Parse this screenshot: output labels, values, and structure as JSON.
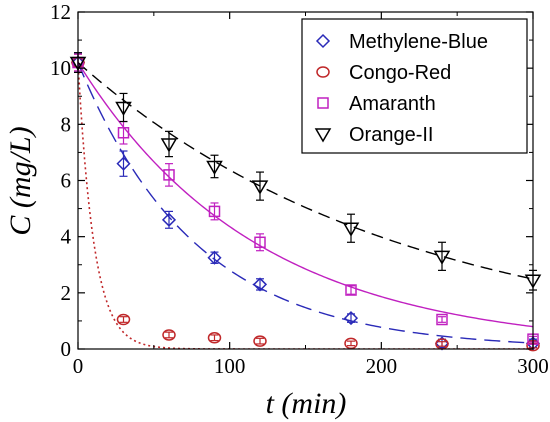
{
  "chart_data": {
    "type": "scatter",
    "xlabel": "t (min)",
    "ylabel": "C (mg/L)",
    "xlim": [
      0,
      300
    ],
    "ylim": [
      0,
      12
    ],
    "xticks": [
      0,
      100,
      200,
      300
    ],
    "yticks": [
      0,
      2,
      4,
      6,
      8,
      10,
      12
    ],
    "grid": false,
    "legend_position": "top-right",
    "series": [
      {
        "name": "Methylene-Blue",
        "marker": "diamond",
        "color": "#2a2ab8",
        "line_style": "long-dash",
        "x": [
          0,
          30,
          60,
          90,
          120,
          180,
          240,
          300
        ],
        "y": [
          10.2,
          6.6,
          4.6,
          3.25,
          2.3,
          1.1,
          0.2,
          0.2
        ],
        "err": [
          0.35,
          0.45,
          0.3,
          0.2,
          0.2,
          0.15,
          0.15,
          0.15
        ],
        "fit": {
          "c0": 10.2,
          "k": 0.0129
        }
      },
      {
        "name": "Congo-Red",
        "marker": "circle",
        "color": "#c0282a",
        "line_style": "dotted",
        "x": [
          0,
          30,
          60,
          90,
          120,
          180,
          240,
          300
        ],
        "y": [
          10.2,
          1.05,
          0.5,
          0.4,
          0.28,
          0.2,
          0.18,
          0.12
        ],
        "err": [
          0.3,
          0.1,
          0.1,
          0.1,
          0.1,
          0.08,
          0.08,
          0.08
        ],
        "fit": {
          "c0": 10.2,
          "k": 0.095
        }
      },
      {
        "name": "Amaranth",
        "marker": "square",
        "color": "#c020c0",
        "line_style": "solid",
        "x": [
          0,
          30,
          60,
          90,
          120,
          180,
          240,
          300
        ],
        "y": [
          10.2,
          7.7,
          6.2,
          4.9,
          3.8,
          2.1,
          1.05,
          0.35
        ],
        "err": [
          0.3,
          0.4,
          0.4,
          0.3,
          0.3,
          0.15,
          0.1,
          0.1
        ],
        "fit": {
          "c0": 10.2,
          "k": 0.0085
        }
      },
      {
        "name": "Orange-II",
        "marker": "triangle-down",
        "color": "#000000",
        "line_style": "dash",
        "x": [
          0,
          30,
          60,
          90,
          120,
          180,
          240,
          300
        ],
        "y": [
          10.2,
          8.6,
          7.3,
          6.5,
          5.8,
          4.3,
          3.3,
          2.45
        ],
        "err": [
          0.35,
          0.5,
          0.45,
          0.4,
          0.5,
          0.5,
          0.5,
          0.35
        ],
        "fit": {
          "c0": 10.2,
          "k": 0.0047
        }
      }
    ]
  }
}
